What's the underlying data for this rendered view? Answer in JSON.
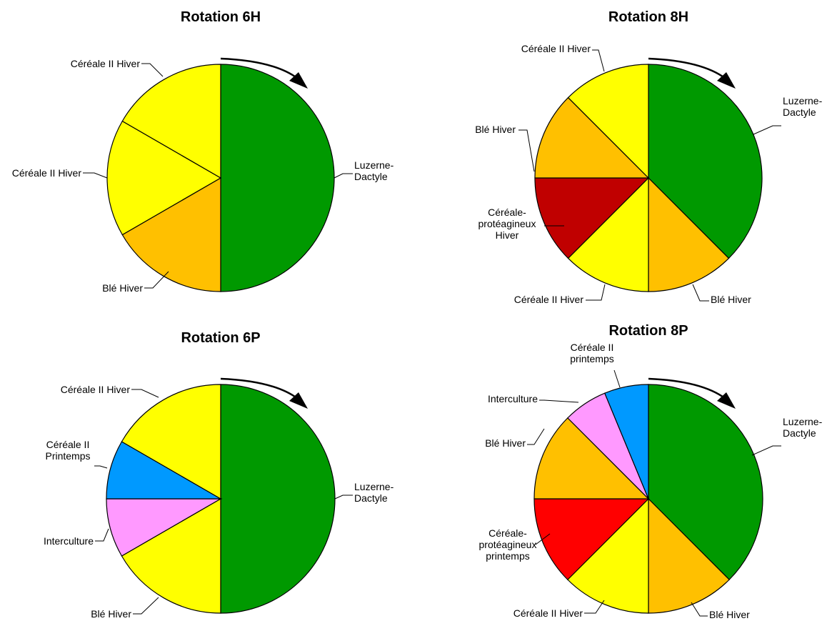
{
  "chart_data": [
    {
      "type": "pie",
      "title": "Rotation 6H",
      "direction": "clockwise",
      "slices": [
        {
          "label": [
            "Luzerne-",
            "Dactyle"
          ],
          "value": 3,
          "color": "#009900"
        },
        {
          "label": [
            "Blé Hiver"
          ],
          "value": 1,
          "color": "#FFC000"
        },
        {
          "label": [
            "Céréale II Hiver"
          ],
          "value": 1,
          "color": "#FFFF00"
        },
        {
          "label": [
            "Céréale II Hiver"
          ],
          "value": 1,
          "color": "#FFFF00"
        }
      ]
    },
    {
      "type": "pie",
      "title": "Rotation 8H",
      "direction": "clockwise",
      "slices": [
        {
          "label": [
            "Luzerne-",
            "Dactyle"
          ],
          "value": 3,
          "color": "#009900"
        },
        {
          "label": [
            "Blé Hiver"
          ],
          "value": 1,
          "color": "#FFC000"
        },
        {
          "label": [
            "Céréale II Hiver"
          ],
          "value": 1,
          "color": "#FFFF00"
        },
        {
          "label": [
            "Céréale-",
            "protéagineux",
            "Hiver"
          ],
          "value": 1,
          "color": "#C00000"
        },
        {
          "label": [
            "Blé Hiver"
          ],
          "value": 1,
          "color": "#FFC000"
        },
        {
          "label": [
            "Céréale II Hiver"
          ],
          "value": 1,
          "color": "#FFFF00"
        }
      ]
    },
    {
      "type": "pie",
      "title": "Rotation 6P",
      "direction": "clockwise",
      "slices": [
        {
          "label": [
            "Luzerne-",
            "Dactyle"
          ],
          "value": 6,
          "color": "#009900"
        },
        {
          "label": [
            "Blé Hiver"
          ],
          "value": 2,
          "color": "#FFFF00"
        },
        {
          "label": [
            "Interculture"
          ],
          "value": 1,
          "color": "#FF99FF"
        },
        {
          "label": [
            "Céréale II",
            "Printemps"
          ],
          "value": 1,
          "color": "#0099FF"
        },
        {
          "label": [
            "Céréale II Hiver"
          ],
          "value": 2,
          "color": "#FFFF00"
        }
      ]
    },
    {
      "type": "pie",
      "title": "Rotation 8P",
      "direction": "clockwise",
      "slices": [
        {
          "label": [
            "Luzerne-",
            "Dactyle"
          ],
          "value": 6,
          "color": "#009900"
        },
        {
          "label": [
            "Blé Hiver"
          ],
          "value": 2,
          "color": "#FFC000"
        },
        {
          "label": [
            "Céréale II Hiver"
          ],
          "value": 2,
          "color": "#FFFF00"
        },
        {
          "label": [
            "Céréale-",
            "protéagineux",
            "printemps"
          ],
          "value": 2,
          "color": "#FF0000"
        },
        {
          "label": [
            "Blé Hiver"
          ],
          "value": 2,
          "color": "#FFC000"
        },
        {
          "label": [
            "Interculture"
          ],
          "value": 1,
          "color": "#FF99FF"
        },
        {
          "label": [
            "Céréale II",
            "printemps"
          ],
          "value": 1,
          "color": "#0099FF"
        }
      ]
    }
  ]
}
